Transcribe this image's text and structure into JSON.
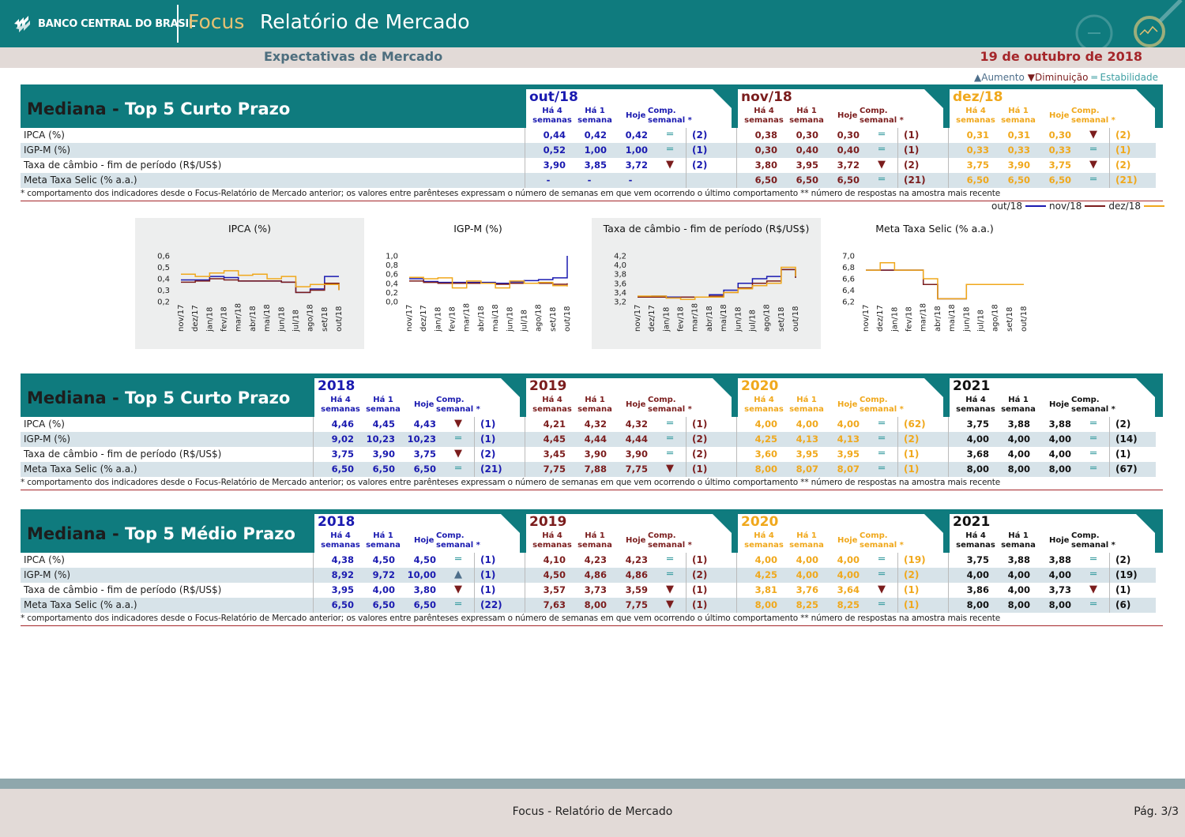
{
  "header": {
    "logo_text": "BANCO CENTRAL DO BRASIL",
    "focus": "Focus",
    "title": "Relatório de Mercado",
    "subtitle": "Expectativas de Mercado",
    "date": "19 de outubro de 2018"
  },
  "legend": {
    "up": "▲Aumento",
    "down": "▼Diminuição",
    "eq": "═ Estabilidade"
  },
  "col_headers": {
    "h4": "Há 4",
    "h4b": "semanas",
    "h1": "Há 1",
    "h1b": "semana",
    "hoje": "Hoje",
    "comp": "Comp.",
    "compb": "semanal *"
  },
  "row_labels": [
    "IPCA (%)",
    "IGP-M (%)",
    "Taxa de câmbio - fim de período (R$/US$)",
    "Meta Taxa Selic (% a.a.)"
  ],
  "footnote": "* comportamento dos indicadores desde o Focus-Relatório de Mercado anterior; os valores entre parênteses expressam o número de semanas em que vem ocorrendo o último comportamento ** número de respostas na amostra mais recente",
  "colors": {
    "teal": "#0f7b7e",
    "blue": "#1a1ab0",
    "red": "#7b1d1d",
    "orange": "#f0a81c",
    "black": "#111111"
  },
  "tables": [
    {
      "title_a": "Mediana -",
      "title_b": "Top 5 Curto Prazo",
      "periods": [
        {
          "label": "out/18",
          "color": "blue",
          "rows": [
            [
              "0,44",
              "0,42",
              "0,42",
              "eq",
              "(2)"
            ],
            [
              "0,52",
              "1,00",
              "1,00",
              "eq",
              "(1)"
            ],
            [
              "3,90",
              "3,85",
              "3,72",
              "down",
              "(2)"
            ],
            [
              "-",
              "-",
              "-",
              "",
              ""
            ]
          ]
        },
        {
          "label": "nov/18",
          "color": "red",
          "rows": [
            [
              "0,38",
              "0,30",
              "0,30",
              "eq",
              "(1)"
            ],
            [
              "0,30",
              "0,40",
              "0,40",
              "eq",
              "(1)"
            ],
            [
              "3,80",
              "3,95",
              "3,72",
              "down",
              "(2)"
            ],
            [
              "6,50",
              "6,50",
              "6,50",
              "eq",
              "(21)"
            ]
          ]
        },
        {
          "label": "dez/18",
          "color": "orange",
          "rows": [
            [
              "0,31",
              "0,31",
              "0,30",
              "down",
              "(2)"
            ],
            [
              "0,33",
              "0,33",
              "0,33",
              "eq",
              "(1)"
            ],
            [
              "3,75",
              "3,90",
              "3,75",
              "down",
              "(2)"
            ],
            [
              "6,50",
              "6,50",
              "6,50",
              "eq",
              "(21)"
            ]
          ]
        }
      ]
    },
    {
      "title_a": "Mediana -",
      "title_b": "Top 5 Curto Prazo",
      "periods": [
        {
          "label": "2018",
          "color": "blue",
          "rows": [
            [
              "4,46",
              "4,45",
              "4,43",
              "down",
              "(1)"
            ],
            [
              "9,02",
              "10,23",
              "10,23",
              "eq",
              "(1)"
            ],
            [
              "3,75",
              "3,90",
              "3,75",
              "down",
              "(2)"
            ],
            [
              "6,50",
              "6,50",
              "6,50",
              "eq",
              "(21)"
            ]
          ]
        },
        {
          "label": "2019",
          "color": "red",
          "rows": [
            [
              "4,21",
              "4,32",
              "4,32",
              "eq",
              "(1)"
            ],
            [
              "4,45",
              "4,44",
              "4,44",
              "eq",
              "(2)"
            ],
            [
              "3,45",
              "3,90",
              "3,90",
              "eq",
              "(2)"
            ],
            [
              "7,75",
              "7,88",
              "7,75",
              "down",
              "(1)"
            ]
          ]
        },
        {
          "label": "2020",
          "color": "orange",
          "rows": [
            [
              "4,00",
              "4,00",
              "4,00",
              "eq",
              "(62)"
            ],
            [
              "4,25",
              "4,13",
              "4,13",
              "eq",
              "(2)"
            ],
            [
              "3,60",
              "3,95",
              "3,95",
              "eq",
              "(1)"
            ],
            [
              "8,00",
              "8,07",
              "8,07",
              "eq",
              "(1)"
            ]
          ]
        },
        {
          "label": "2021",
          "color": "black",
          "rows": [
            [
              "3,75",
              "3,88",
              "3,88",
              "eq",
              "(2)"
            ],
            [
              "4,00",
              "4,00",
              "4,00",
              "eq",
              "(14)"
            ],
            [
              "3,68",
              "4,00",
              "4,00",
              "eq",
              "(1)"
            ],
            [
              "8,00",
              "8,00",
              "8,00",
              "eq",
              "(67)"
            ]
          ]
        }
      ]
    },
    {
      "title_a": "Mediana -",
      "title_b": "Top 5 Médio Prazo",
      "periods": [
        {
          "label": "2018",
          "color": "blue",
          "rows": [
            [
              "4,38",
              "4,50",
              "4,50",
              "eq",
              "(1)"
            ],
            [
              "8,92",
              "9,72",
              "10,00",
              "up",
              "(1)"
            ],
            [
              "3,95",
              "4,00",
              "3,80",
              "down",
              "(1)"
            ],
            [
              "6,50",
              "6,50",
              "6,50",
              "eq",
              "(22)"
            ]
          ]
        },
        {
          "label": "2019",
          "color": "red",
          "rows": [
            [
              "4,10",
              "4,23",
              "4,23",
              "eq",
              "(1)"
            ],
            [
              "4,50",
              "4,86",
              "4,86",
              "eq",
              "(2)"
            ],
            [
              "3,57",
              "3,73",
              "3,59",
              "down",
              "(1)"
            ],
            [
              "7,63",
              "8,00",
              "7,75",
              "down",
              "(1)"
            ]
          ]
        },
        {
          "label": "2020",
          "color": "orange",
          "rows": [
            [
              "4,00",
              "4,00",
              "4,00",
              "eq",
              "(19)"
            ],
            [
              "4,25",
              "4,00",
              "4,00",
              "eq",
              "(2)"
            ],
            [
              "3,81",
              "3,76",
              "3,64",
              "down",
              "(1)"
            ],
            [
              "8,00",
              "8,25",
              "8,25",
              "eq",
              "(1)"
            ]
          ]
        },
        {
          "label": "2021",
          "color": "black",
          "rows": [
            [
              "3,75",
              "3,88",
              "3,88",
              "eq",
              "(2)"
            ],
            [
              "4,00",
              "4,00",
              "4,00",
              "eq",
              "(19)"
            ],
            [
              "3,86",
              "4,00",
              "3,73",
              "down",
              "(1)"
            ],
            [
              "8,00",
              "8,00",
              "8,00",
              "eq",
              "(6)"
            ]
          ]
        }
      ]
    }
  ],
  "chart_legend": [
    "out/18",
    "nov/18",
    "dez/18"
  ],
  "chart_data": [
    {
      "type": "line",
      "title": "IPCA (%)",
      "ylim": [
        0.2,
        0.6
      ],
      "yticks": [
        "0,6",
        "0,5",
        "0,4",
        "0,3",
        "0,2"
      ],
      "categories": [
        "nov/17",
        "dez/17",
        "jan/18",
        "fev/18",
        "mar/18",
        "abr/18",
        "mai/18",
        "jun/18",
        "jul/18",
        "ago/18",
        "set/18",
        "out/18"
      ],
      "series": [
        {
          "name": "out/18",
          "color": "#1a1ab0",
          "values": [
            0.39,
            0.39,
            0.42,
            0.41,
            0.38,
            0.38,
            0.38,
            0.37,
            0.28,
            0.31,
            0.42,
            0.42
          ]
        },
        {
          "name": "nov/18",
          "color": "#7b1d1d",
          "values": [
            0.37,
            0.38,
            0.4,
            0.39,
            0.38,
            0.38,
            0.38,
            0.37,
            0.28,
            0.3,
            0.36,
            0.3
          ]
        },
        {
          "name": "dez/18",
          "color": "#f0a81c",
          "values": [
            0.44,
            0.42,
            0.45,
            0.47,
            0.43,
            0.44,
            0.4,
            0.42,
            0.33,
            0.35,
            0.35,
            0.3
          ]
        }
      ]
    },
    {
      "type": "line",
      "title": "IGP-M (%)",
      "ylim": [
        0.0,
        1.0
      ],
      "yticks": [
        "1,0",
        "0,8",
        "0,6",
        "0,4",
        "0,2",
        "0,0"
      ],
      "categories": [
        "nov/17",
        "dez/17",
        "jan/18",
        "fev/18",
        "mar/18",
        "abr/18",
        "mai/18",
        "jun/18",
        "jul/18",
        "ago/18",
        "set/18",
        "out/18"
      ],
      "series": [
        {
          "name": "out/18",
          "color": "#1a1ab0",
          "values": [
            0.5,
            0.44,
            0.42,
            0.42,
            0.42,
            0.42,
            0.4,
            0.43,
            0.46,
            0.48,
            0.52,
            1.0
          ]
        },
        {
          "name": "nov/18",
          "color": "#7b1d1d",
          "values": [
            0.45,
            0.42,
            0.4,
            0.4,
            0.4,
            0.4,
            0.38,
            0.4,
            0.4,
            0.4,
            0.38,
            0.4
          ]
        },
        {
          "name": "dez/18",
          "color": "#f0a81c",
          "values": [
            0.53,
            0.5,
            0.52,
            0.3,
            0.45,
            0.4,
            0.3,
            0.45,
            0.4,
            0.42,
            0.35,
            0.33
          ]
        }
      ]
    },
    {
      "type": "line",
      "title": "Taxa de câmbio - fim de período (R$/US$)",
      "ylim": [
        3.2,
        4.2
      ],
      "yticks": [
        "4,2",
        "4,0",
        "3,8",
        "3,6",
        "3,4",
        "3,2"
      ],
      "categories": [
        "nov/17",
        "dez/17",
        "jan/18",
        "fev/18",
        "mar/18",
        "abr/18",
        "mai/18",
        "jun/18",
        "jul/18",
        "ago/18",
        "set/18",
        "out/18"
      ],
      "series": [
        {
          "name": "out/18",
          "color": "#1a1ab0",
          "values": [
            3.3,
            3.32,
            3.3,
            3.3,
            3.3,
            3.35,
            3.45,
            3.6,
            3.7,
            3.75,
            3.9,
            3.72
          ]
        },
        {
          "name": "nov/18",
          "color": "#7b1d1d",
          "values": [
            3.3,
            3.3,
            3.28,
            3.3,
            3.3,
            3.32,
            3.4,
            3.5,
            3.6,
            3.65,
            3.9,
            3.72
          ]
        },
        {
          "name": "dez/18",
          "color": "#f0a81c",
          "values": [
            3.32,
            3.32,
            3.28,
            3.25,
            3.3,
            3.3,
            3.4,
            3.48,
            3.55,
            3.6,
            3.95,
            3.75
          ]
        }
      ]
    },
    {
      "type": "line",
      "title": "Meta Taxa Selic (% a.a.)",
      "ylim": [
        6.2,
        7.0
      ],
      "yticks": [
        "7,0",
        "6,8",
        "6,6",
        "6,4",
        "6,2"
      ],
      "categories": [
        "nov/17",
        "dez/17",
        "jan/18",
        "fev/18",
        "mar/18",
        "abr/18",
        "mai/18",
        "jun/18",
        "jul/18",
        "ago/18",
        "set/18",
        "out/18"
      ],
      "series": [
        {
          "name": "out/18",
          "color": "#1a1ab0",
          "values": [
            6.75,
            6.75,
            6.75,
            6.75,
            6.5,
            6.25,
            6.25,
            6.5,
            6.5,
            6.5,
            6.5,
            6.5
          ]
        },
        {
          "name": "nov/18",
          "color": "#7b1d1d",
          "values": [
            6.75,
            6.75,
            6.75,
            6.75,
            6.5,
            6.25,
            6.25,
            6.5,
            6.5,
            6.5,
            6.5,
            6.5
          ]
        },
        {
          "name": "dez/18",
          "color": "#f0a81c",
          "values": [
            6.75,
            6.88,
            6.75,
            6.75,
            6.6,
            6.25,
            6.25,
            6.5,
            6.5,
            6.5,
            6.5,
            6.5
          ]
        }
      ]
    }
  ],
  "footer": {
    "center": "Focus - Relatório de Mercado",
    "page": "Pág. 3/3"
  }
}
